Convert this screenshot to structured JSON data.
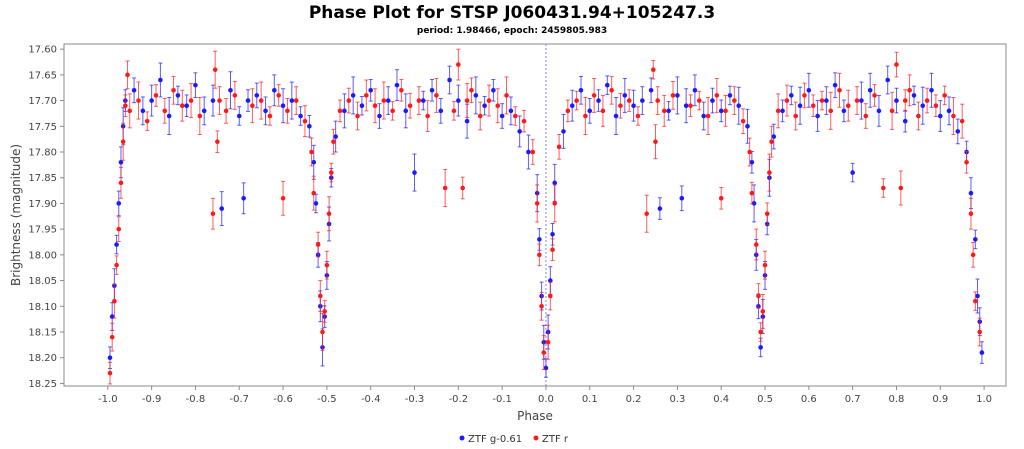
{
  "chart_data": {
    "type": "scatter",
    "title": "Phase Plot for STSP J060431.94+105247.3",
    "subtitle": "period: 1.98466, epoch: 2459805.983",
    "xlabel": "Phase",
    "ylabel": "Brightness (magnitude)",
    "xlim": [
      -1.1,
      1.05
    ],
    "ylim": [
      17.59,
      18.255
    ],
    "y_inverted": true,
    "xticks": [
      "-1.0",
      "-0.9",
      "-0.8",
      "-0.7",
      "-0.6",
      "-0.5",
      "-0.4",
      "-0.3",
      "-0.2",
      "-0.1",
      "0.0",
      "0.1",
      "0.2",
      "0.3",
      "0.4",
      "0.5",
      "0.6",
      "0.7",
      "0.8",
      "0.9",
      "1.0"
    ],
    "yticks": [
      "17.60",
      "17.65",
      "17.70",
      "17.75",
      "17.80",
      "17.85",
      "17.90",
      "17.95",
      "18.00",
      "18.05",
      "18.10",
      "18.15",
      "18.20",
      "18.25"
    ],
    "grid": false,
    "legend_position": "bottom-center",
    "reference_line_x": 0.0,
    "error_bars": true,
    "series": [
      {
        "name": "ZTF g-0.61",
        "color": "#1a1aff",
        "points": [
          [
            -0.995,
            18.2
          ],
          [
            -0.99,
            18.12
          ],
          [
            -0.985,
            18.06
          ],
          [
            -0.98,
            17.98
          ],
          [
            -0.975,
            17.9
          ],
          [
            -0.97,
            17.82
          ],
          [
            -0.965,
            17.75
          ],
          [
            -0.96,
            17.7
          ],
          [
            -0.94,
            17.68
          ],
          [
            -0.92,
            17.72
          ],
          [
            -0.9,
            17.7
          ],
          [
            -0.88,
            17.66
          ],
          [
            -0.86,
            17.73
          ],
          [
            -0.84,
            17.69
          ],
          [
            -0.82,
            17.71
          ],
          [
            -0.8,
            17.67
          ],
          [
            -0.78,
            17.72
          ],
          [
            -0.74,
            17.91
          ],
          [
            -0.69,
            17.89
          ],
          [
            -0.76,
            17.7
          ],
          [
            -0.72,
            17.68
          ],
          [
            -0.7,
            17.73
          ],
          [
            -0.68,
            17.7
          ],
          [
            -0.66,
            17.69
          ],
          [
            -0.64,
            17.72
          ],
          [
            -0.62,
            17.68
          ],
          [
            -0.6,
            17.71
          ],
          [
            -0.58,
            17.7
          ],
          [
            -0.56,
            17.73
          ],
          [
            -0.54,
            17.75
          ],
          [
            -0.53,
            17.82
          ],
          [
            -0.525,
            17.9
          ],
          [
            -0.52,
            18.0
          ],
          [
            -0.515,
            18.1
          ],
          [
            -0.51,
            18.18
          ],
          [
            -0.505,
            18.12
          ],
          [
            -0.5,
            18.04
          ],
          [
            -0.495,
            17.94
          ],
          [
            -0.49,
            17.85
          ],
          [
            -0.48,
            17.77
          ],
          [
            -0.46,
            17.72
          ],
          [
            -0.44,
            17.69
          ],
          [
            -0.42,
            17.71
          ],
          [
            -0.4,
            17.68
          ],
          [
            -0.38,
            17.73
          ],
          [
            -0.36,
            17.7
          ],
          [
            -0.34,
            17.67
          ],
          [
            -0.32,
            17.72
          ],
          [
            -0.3,
            17.84
          ],
          [
            -0.28,
            17.7
          ],
          [
            -0.26,
            17.68
          ],
          [
            -0.24,
            17.72
          ],
          [
            -0.22,
            17.66
          ],
          [
            -0.2,
            17.7
          ],
          [
            -0.18,
            17.74
          ],
          [
            -0.16,
            17.69
          ],
          [
            -0.14,
            17.71
          ],
          [
            -0.12,
            17.68
          ],
          [
            -0.1,
            17.73
          ],
          [
            -0.08,
            17.72
          ],
          [
            -0.06,
            17.76
          ],
          [
            -0.04,
            17.8
          ],
          [
            -0.02,
            17.88
          ],
          [
            -0.015,
            17.97
          ],
          [
            -0.01,
            18.08
          ],
          [
            -0.005,
            18.17
          ],
          [
            0.0,
            18.22
          ],
          [
            0.005,
            18.15
          ],
          [
            0.01,
            18.05
          ],
          [
            0.015,
            17.96
          ],
          [
            0.02,
            17.86
          ],
          [
            0.04,
            17.76
          ],
          [
            0.06,
            17.71
          ],
          [
            0.08,
            17.68
          ],
          [
            0.1,
            17.72
          ],
          [
            0.12,
            17.7
          ],
          [
            0.14,
            17.67
          ],
          [
            0.16,
            17.73
          ],
          [
            0.18,
            17.69
          ],
          [
            0.2,
            17.71
          ],
          [
            0.22,
            17.7
          ],
          [
            0.26,
            17.91
          ],
          [
            0.31,
            17.89
          ],
          [
            0.24,
            17.68
          ],
          [
            0.28,
            17.72
          ],
          [
            0.3,
            17.69
          ],
          [
            0.32,
            17.71
          ],
          [
            0.34,
            17.68
          ],
          [
            0.36,
            17.73
          ],
          [
            0.38,
            17.7
          ],
          [
            0.4,
            17.72
          ],
          [
            0.42,
            17.69
          ],
          [
            0.44,
            17.71
          ],
          [
            0.46,
            17.75
          ],
          [
            0.47,
            17.82
          ],
          [
            0.475,
            17.9
          ],
          [
            0.48,
            18.0
          ],
          [
            0.485,
            18.1
          ],
          [
            0.49,
            18.18
          ],
          [
            0.495,
            18.12
          ],
          [
            0.5,
            18.04
          ],
          [
            0.505,
            17.94
          ],
          [
            0.51,
            17.85
          ],
          [
            0.52,
            17.77
          ],
          [
            0.54,
            17.72
          ],
          [
            0.56,
            17.69
          ],
          [
            0.58,
            17.71
          ],
          [
            0.6,
            17.68
          ],
          [
            0.62,
            17.73
          ],
          [
            0.64,
            17.7
          ],
          [
            0.66,
            17.67
          ],
          [
            0.68,
            17.72
          ],
          [
            0.7,
            17.84
          ],
          [
            0.72,
            17.7
          ],
          [
            0.74,
            17.68
          ],
          [
            0.76,
            17.72
          ],
          [
            0.78,
            17.66
          ],
          [
            0.8,
            17.7
          ],
          [
            0.82,
            17.74
          ],
          [
            0.84,
            17.69
          ],
          [
            0.86,
            17.71
          ],
          [
            0.88,
            17.68
          ],
          [
            0.9,
            17.73
          ],
          [
            0.92,
            17.72
          ],
          [
            0.94,
            17.76
          ],
          [
            0.96,
            17.8
          ],
          [
            0.97,
            17.88
          ],
          [
            0.98,
            17.97
          ],
          [
            0.985,
            18.08
          ],
          [
            0.99,
            18.13
          ],
          [
            0.995,
            18.19
          ]
        ]
      },
      {
        "name": "ZTF r",
        "color": "#ff1a1a",
        "points": [
          [
            -0.995,
            18.23
          ],
          [
            -0.99,
            18.16
          ],
          [
            -0.985,
            18.09
          ],
          [
            -0.98,
            18.02
          ],
          [
            -0.975,
            17.95
          ],
          [
            -0.97,
            17.86
          ],
          [
            -0.965,
            17.78
          ],
          [
            -0.96,
            17.71
          ],
          [
            -0.955,
            17.65
          ],
          [
            -0.95,
            17.72
          ],
          [
            -0.93,
            17.7
          ],
          [
            -0.91,
            17.74
          ],
          [
            -0.89,
            17.69
          ],
          [
            -0.87,
            17.72
          ],
          [
            -0.85,
            17.68
          ],
          [
            -0.83,
            17.71
          ],
          [
            -0.81,
            17.7
          ],
          [
            -0.79,
            17.73
          ],
          [
            -0.76,
            17.92
          ],
          [
            -0.6,
            17.89
          ],
          [
            -0.755,
            17.64
          ],
          [
            -0.75,
            17.78
          ],
          [
            -0.745,
            17.7
          ],
          [
            -0.73,
            17.72
          ],
          [
            -0.71,
            17.69
          ],
          [
            -0.67,
            17.71
          ],
          [
            -0.65,
            17.7
          ],
          [
            -0.63,
            17.73
          ],
          [
            -0.61,
            17.69
          ],
          [
            -0.59,
            17.72
          ],
          [
            -0.57,
            17.7
          ],
          [
            -0.55,
            17.74
          ],
          [
            -0.535,
            17.8
          ],
          [
            -0.53,
            17.88
          ],
          [
            -0.52,
            17.98
          ],
          [
            -0.515,
            18.08
          ],
          [
            -0.51,
            18.15
          ],
          [
            -0.505,
            18.11
          ],
          [
            -0.5,
            18.02
          ],
          [
            -0.495,
            17.92
          ],
          [
            -0.49,
            17.84
          ],
          [
            -0.485,
            17.78
          ],
          [
            -0.47,
            17.72
          ],
          [
            -0.45,
            17.7
          ],
          [
            -0.43,
            17.73
          ],
          [
            -0.41,
            17.69
          ],
          [
            -0.39,
            17.71
          ],
          [
            -0.37,
            17.7
          ],
          [
            -0.35,
            17.72
          ],
          [
            -0.33,
            17.68
          ],
          [
            -0.31,
            17.71
          ],
          [
            -0.29,
            17.7
          ],
          [
            -0.27,
            17.73
          ],
          [
            -0.25,
            17.69
          ],
          [
            -0.23,
            17.87
          ],
          [
            -0.21,
            17.72
          ],
          [
            -0.2,
            17.63
          ],
          [
            -0.19,
            17.87
          ],
          [
            -0.18,
            17.7
          ],
          [
            -0.17,
            17.68
          ],
          [
            -0.15,
            17.73
          ],
          [
            -0.13,
            17.7
          ],
          [
            -0.11,
            17.71
          ],
          [
            -0.09,
            17.69
          ],
          [
            -0.07,
            17.73
          ],
          [
            -0.05,
            17.74
          ],
          [
            -0.03,
            17.8
          ],
          [
            -0.02,
            17.9
          ],
          [
            -0.015,
            18.0
          ],
          [
            -0.01,
            18.1
          ],
          [
            -0.005,
            18.19
          ],
          [
            0.005,
            18.17
          ],
          [
            0.01,
            18.08
          ],
          [
            0.015,
            17.99
          ],
          [
            0.02,
            17.9
          ],
          [
            0.03,
            17.79
          ],
          [
            0.05,
            17.72
          ],
          [
            0.07,
            17.7
          ],
          [
            0.09,
            17.73
          ],
          [
            0.11,
            17.69
          ],
          [
            0.13,
            17.72
          ],
          [
            0.15,
            17.68
          ],
          [
            0.17,
            17.71
          ],
          [
            0.19,
            17.7
          ],
          [
            0.21,
            17.73
          ],
          [
            0.23,
            17.92
          ],
          [
            0.245,
            17.64
          ],
          [
            0.25,
            17.78
          ],
          [
            0.255,
            17.7
          ],
          [
            0.27,
            17.72
          ],
          [
            0.29,
            17.69
          ],
          [
            0.33,
            17.71
          ],
          [
            0.35,
            17.7
          ],
          [
            0.37,
            17.73
          ],
          [
            0.39,
            17.69
          ],
          [
            0.4,
            17.89
          ],
          [
            0.41,
            17.72
          ],
          [
            0.43,
            17.7
          ],
          [
            0.45,
            17.74
          ],
          [
            0.465,
            17.8
          ],
          [
            0.47,
            17.88
          ],
          [
            0.48,
            17.98
          ],
          [
            0.485,
            18.08
          ],
          [
            0.49,
            18.15
          ],
          [
            0.495,
            18.11
          ],
          [
            0.5,
            18.02
          ],
          [
            0.505,
            17.92
          ],
          [
            0.51,
            17.84
          ],
          [
            0.515,
            17.78
          ],
          [
            0.53,
            17.72
          ],
          [
            0.55,
            17.7
          ],
          [
            0.57,
            17.73
          ],
          [
            0.59,
            17.69
          ],
          [
            0.61,
            17.71
          ],
          [
            0.63,
            17.7
          ],
          [
            0.65,
            17.72
          ],
          [
            0.67,
            17.68
          ],
          [
            0.69,
            17.71
          ],
          [
            0.71,
            17.7
          ],
          [
            0.73,
            17.73
          ],
          [
            0.75,
            17.69
          ],
          [
            0.77,
            17.87
          ],
          [
            0.79,
            17.72
          ],
          [
            0.8,
            17.63
          ],
          [
            0.81,
            17.87
          ],
          [
            0.82,
            17.7
          ],
          [
            0.83,
            17.68
          ],
          [
            0.85,
            17.73
          ],
          [
            0.87,
            17.7
          ],
          [
            0.89,
            17.71
          ],
          [
            0.91,
            17.69
          ],
          [
            0.93,
            17.73
          ],
          [
            0.95,
            17.74
          ],
          [
            0.96,
            17.82
          ],
          [
            0.97,
            17.92
          ],
          [
            0.975,
            18.0
          ],
          [
            0.98,
            18.09
          ],
          [
            0.99,
            18.15
          ]
        ]
      }
    ]
  }
}
